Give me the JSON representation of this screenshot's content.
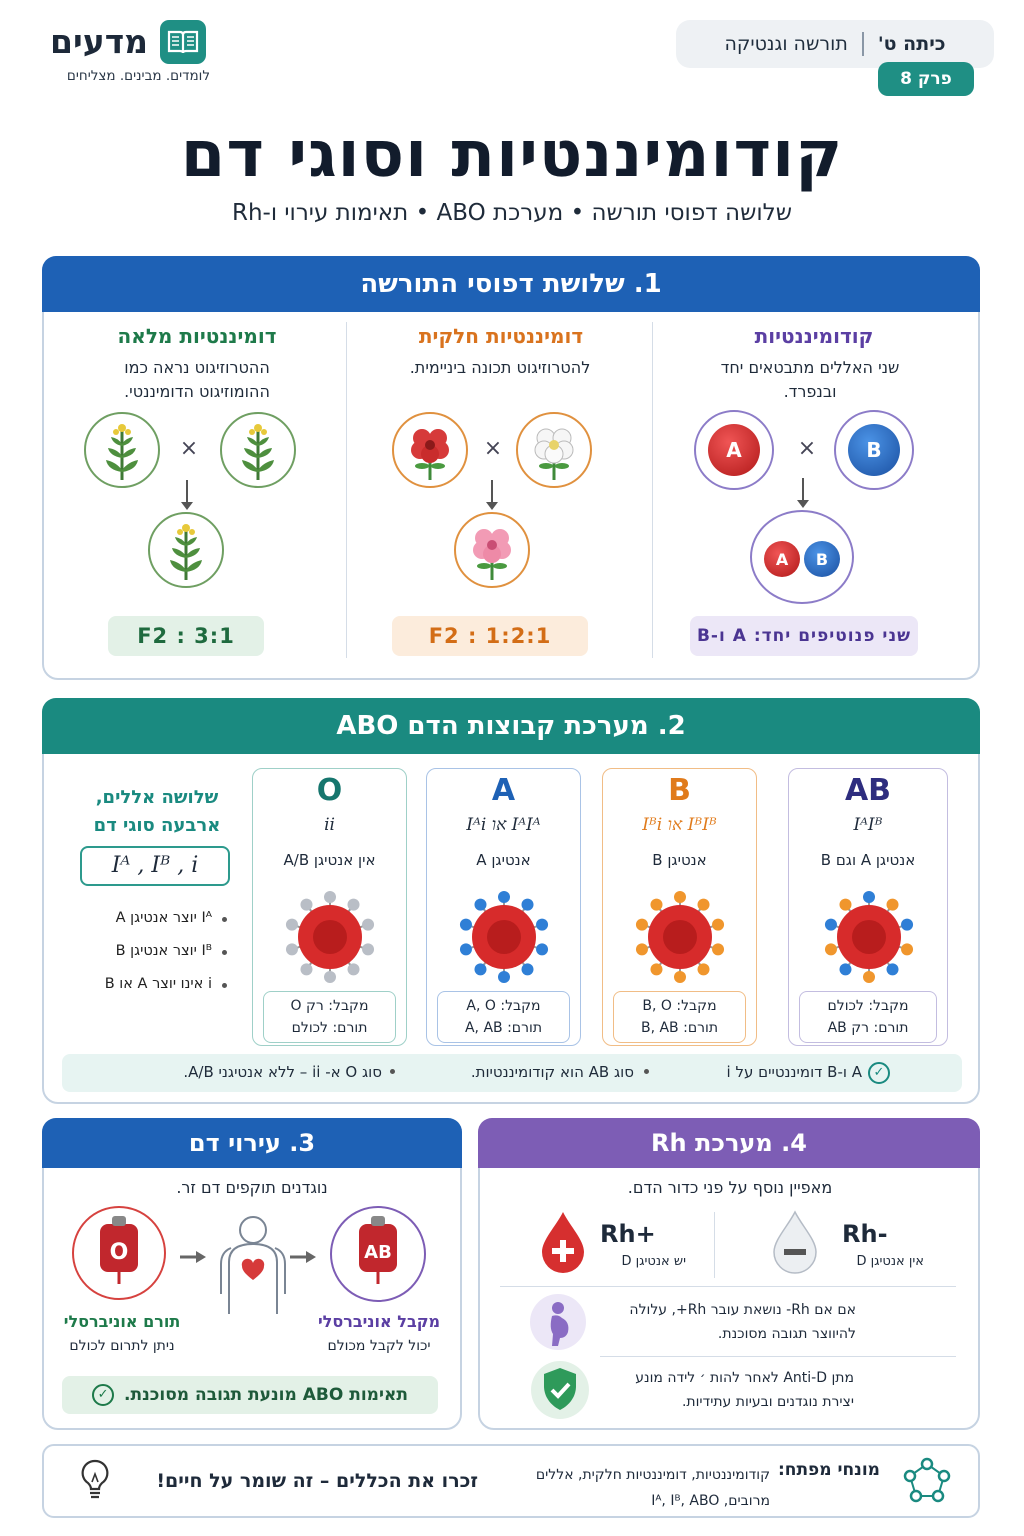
{
  "header": {
    "grade": "כיתה ט'",
    "topic": "תורשה וגנטיקה",
    "chapter": "פרק 8",
    "brand": "מדעים",
    "tagline": "לומדים. מבינים. מצליחים",
    "title": "קודומיננטיות וסוגי דם",
    "subtitle": "שלושה דפוסי תורשה • מערכת ABO • תאימות עירוי ו-Rh"
  },
  "section1": {
    "title": "1. שלושת דפוסי התורשה",
    "columns": [
      {
        "title": "קודומיננטיות",
        "desc": "שני האללים מתבטאים יחד ובנפרד.",
        "result": "שני פנוטיפים יחד: A ו-B",
        "parent1": "A",
        "parent2": "B",
        "child1": "A",
        "child2": "B",
        "color": "#5b3fa3"
      },
      {
        "title": "דומיננטיות חלקית",
        "desc": "להטרוזיגוט תכונה ביניימית.",
        "result": "F2 : 1:2:1",
        "color": "#d9731e"
      },
      {
        "title": "דומיננטיות מלאה",
        "desc": "ההטרוזיגוט נראה כמו ההומוזיגוט הדומיננטי.",
        "result": "F2 : 3:1",
        "color": "#1e7a4a"
      }
    ],
    "times": "×"
  },
  "section2": {
    "title": "2. מערכת קבוצות הדם ABO",
    "side": {
      "heading": "שלושה אללים, ארבעה סוגי דם",
      "alleles": "Iᴬ , Iᴮ , i",
      "bullets": [
        "Iᴬ יוצר אנטיגן A",
        "Iᴮ יוצר אנטיגן B",
        "i אינו יוצר A או B"
      ]
    },
    "cards": [
      {
        "type": "O",
        "genotype": "ii",
        "antigen": "אין אנטיגן A/B",
        "receive": "מקבל: רק O",
        "donate": "תורם: לכולם",
        "color": "#1a8a80",
        "knob": "#b9bec6"
      },
      {
        "type": "A",
        "genotype": "IᴬIᴬ או Iᴬi",
        "antigen": "אנטיגן A",
        "receive": "מקבל: A, O",
        "donate": "תורם: A, AB",
        "color": "#1e61b5",
        "knob": "#2f7fd6"
      },
      {
        "type": "B",
        "genotype": "IᴮIᴮ או Iᴮi",
        "antigen": "אנטיגן B",
        "receive": "מקבל: B, O",
        "donate": "תורם: B, AB",
        "color": "#e07b1c",
        "knob": "#f0962d"
      },
      {
        "type": "AB",
        "genotype": "IᴬIᴮ",
        "antigen": "אנטיגן A וגם B",
        "receive": "מקבל: לכולם",
        "donate": "תורם: רק AB",
        "color": "#3b3a8f",
        "knob": "mixed"
      }
    ],
    "notes": [
      "A ו-B דומיננטיים על i",
      "סוג AB הוא קודומיננטיות.",
      "סוג O א- ii – ללא אנטיגני A/B."
    ]
  },
  "section3": {
    "title": "3. עירוי דם",
    "intro": "נוגדנים תוקפים דם זר.",
    "donor": {
      "label": "O",
      "title": "תורם אוניברסלי",
      "desc": "ניתן לתרום לכולם"
    },
    "receiver": {
      "label": "AB",
      "title": "מקבל אוניברסלי",
      "desc": "יכול לקבל מכולם"
    },
    "bar": "תאימות ABO מונעת תגובה מסוכנת."
  },
  "section4": {
    "title": "4. מערכת Rh",
    "intro": "מאפיין נוסף על פני כדור הדם.",
    "pos": {
      "label": "Rh+",
      "desc": "יש אנטיגן D"
    },
    "neg": {
      "label": "Rh-",
      "desc": "אין אנטיגן D"
    },
    "pregnancy": "אם אם Rh- נושאת עובר Rh+, עלולה להיווצר תגובה מסוכנת.",
    "antid": "מתן Anti-D לאחר להות ׳ לידה מונע יצירת נוגדנים ובעיות עתידיות."
  },
  "footer": {
    "key_label": "מונחי מפתח:",
    "key_terms": "קודומיננטיות, דומיננטיות חלקית, אללים מרובים, Iᴬ, Iᴮ, ABO",
    "slogan": "זכרו את הכללים – זה שומר על חיים!"
  },
  "colors": {
    "blue": "#1e61b5",
    "teal": "#1a8a80",
    "purple": "#7d5db5",
    "red": "#d62f2f"
  }
}
